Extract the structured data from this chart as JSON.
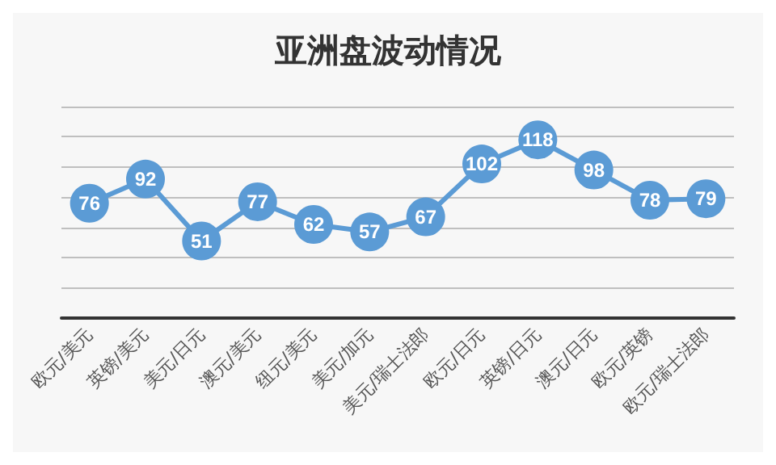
{
  "chart_data": {
    "type": "line",
    "title": "亚洲盘波动情况",
    "categories": [
      "欧元/美元",
      "英镑/美元",
      "美元/日元",
      "澳元/美元",
      "纽元/美元",
      "美元/加元",
      "美元/瑞士法郎",
      "欧元/日元",
      "英镑/日元",
      "澳元/日元",
      "欧元/英镑",
      "欧元/瑞士法郎"
    ],
    "series": [
      {
        "color": "#5b9bd5",
        "values": [
          76,
          92,
          51,
          77,
          62,
          57,
          67,
          102,
          118,
          98,
          78,
          79
        ]
      }
    ],
    "ylim": [
      0,
      140
    ],
    "yticks": [
      0,
      20,
      40,
      60,
      80,
      100,
      120,
      140
    ],
    "tick_labels": "x",
    "grid": "y",
    "data_labels": true,
    "marker": "circle",
    "line_style": "solid"
  }
}
